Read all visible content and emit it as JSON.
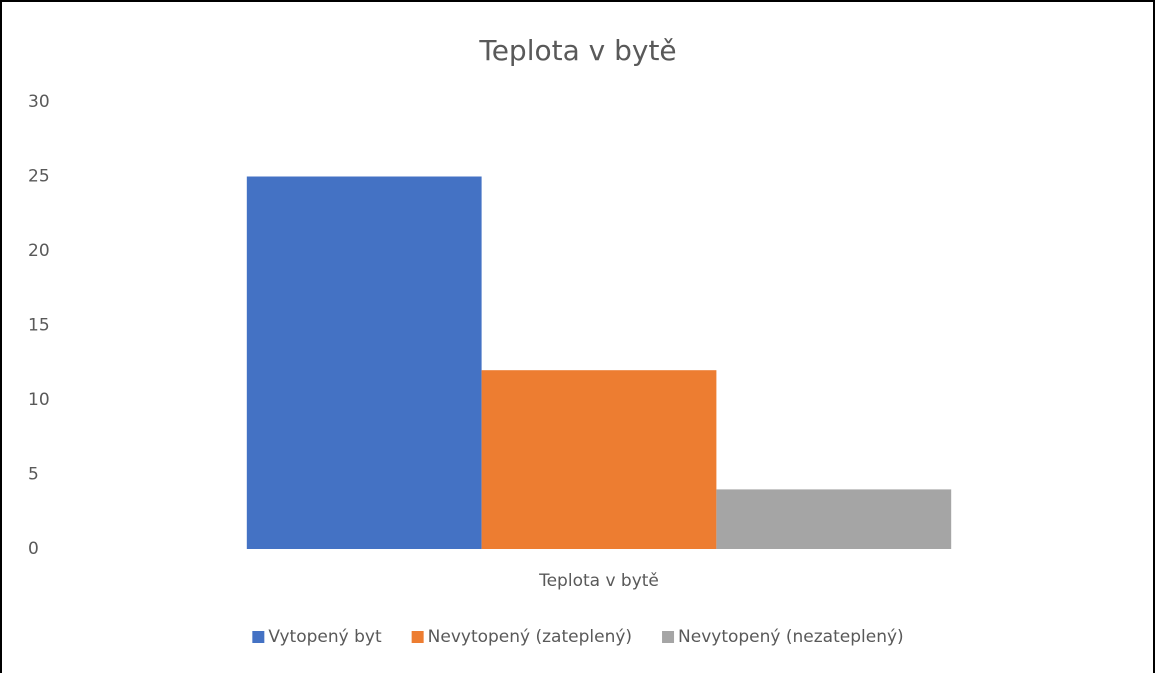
{
  "chart_data": {
    "type": "bar",
    "title": "Teplota v bytě",
    "categories": [
      "Teplota v bytě"
    ],
    "series": [
      {
        "name": "Vytopený byt",
        "color": "#4472c4",
        "values": [
          25
        ]
      },
      {
        "name": "Nevytopený (zateplený)",
        "color": "#ed7d31",
        "values": [
          12
        ]
      },
      {
        "name": "Nevytopený (nezateplený)",
        "color": "#a5a5a5",
        "values": [
          4
        ]
      }
    ],
    "ylim": [
      0,
      30
    ],
    "yticks": [
      0,
      5,
      10,
      15,
      20,
      25,
      30
    ],
    "grid": false,
    "legend": "bottom"
  }
}
